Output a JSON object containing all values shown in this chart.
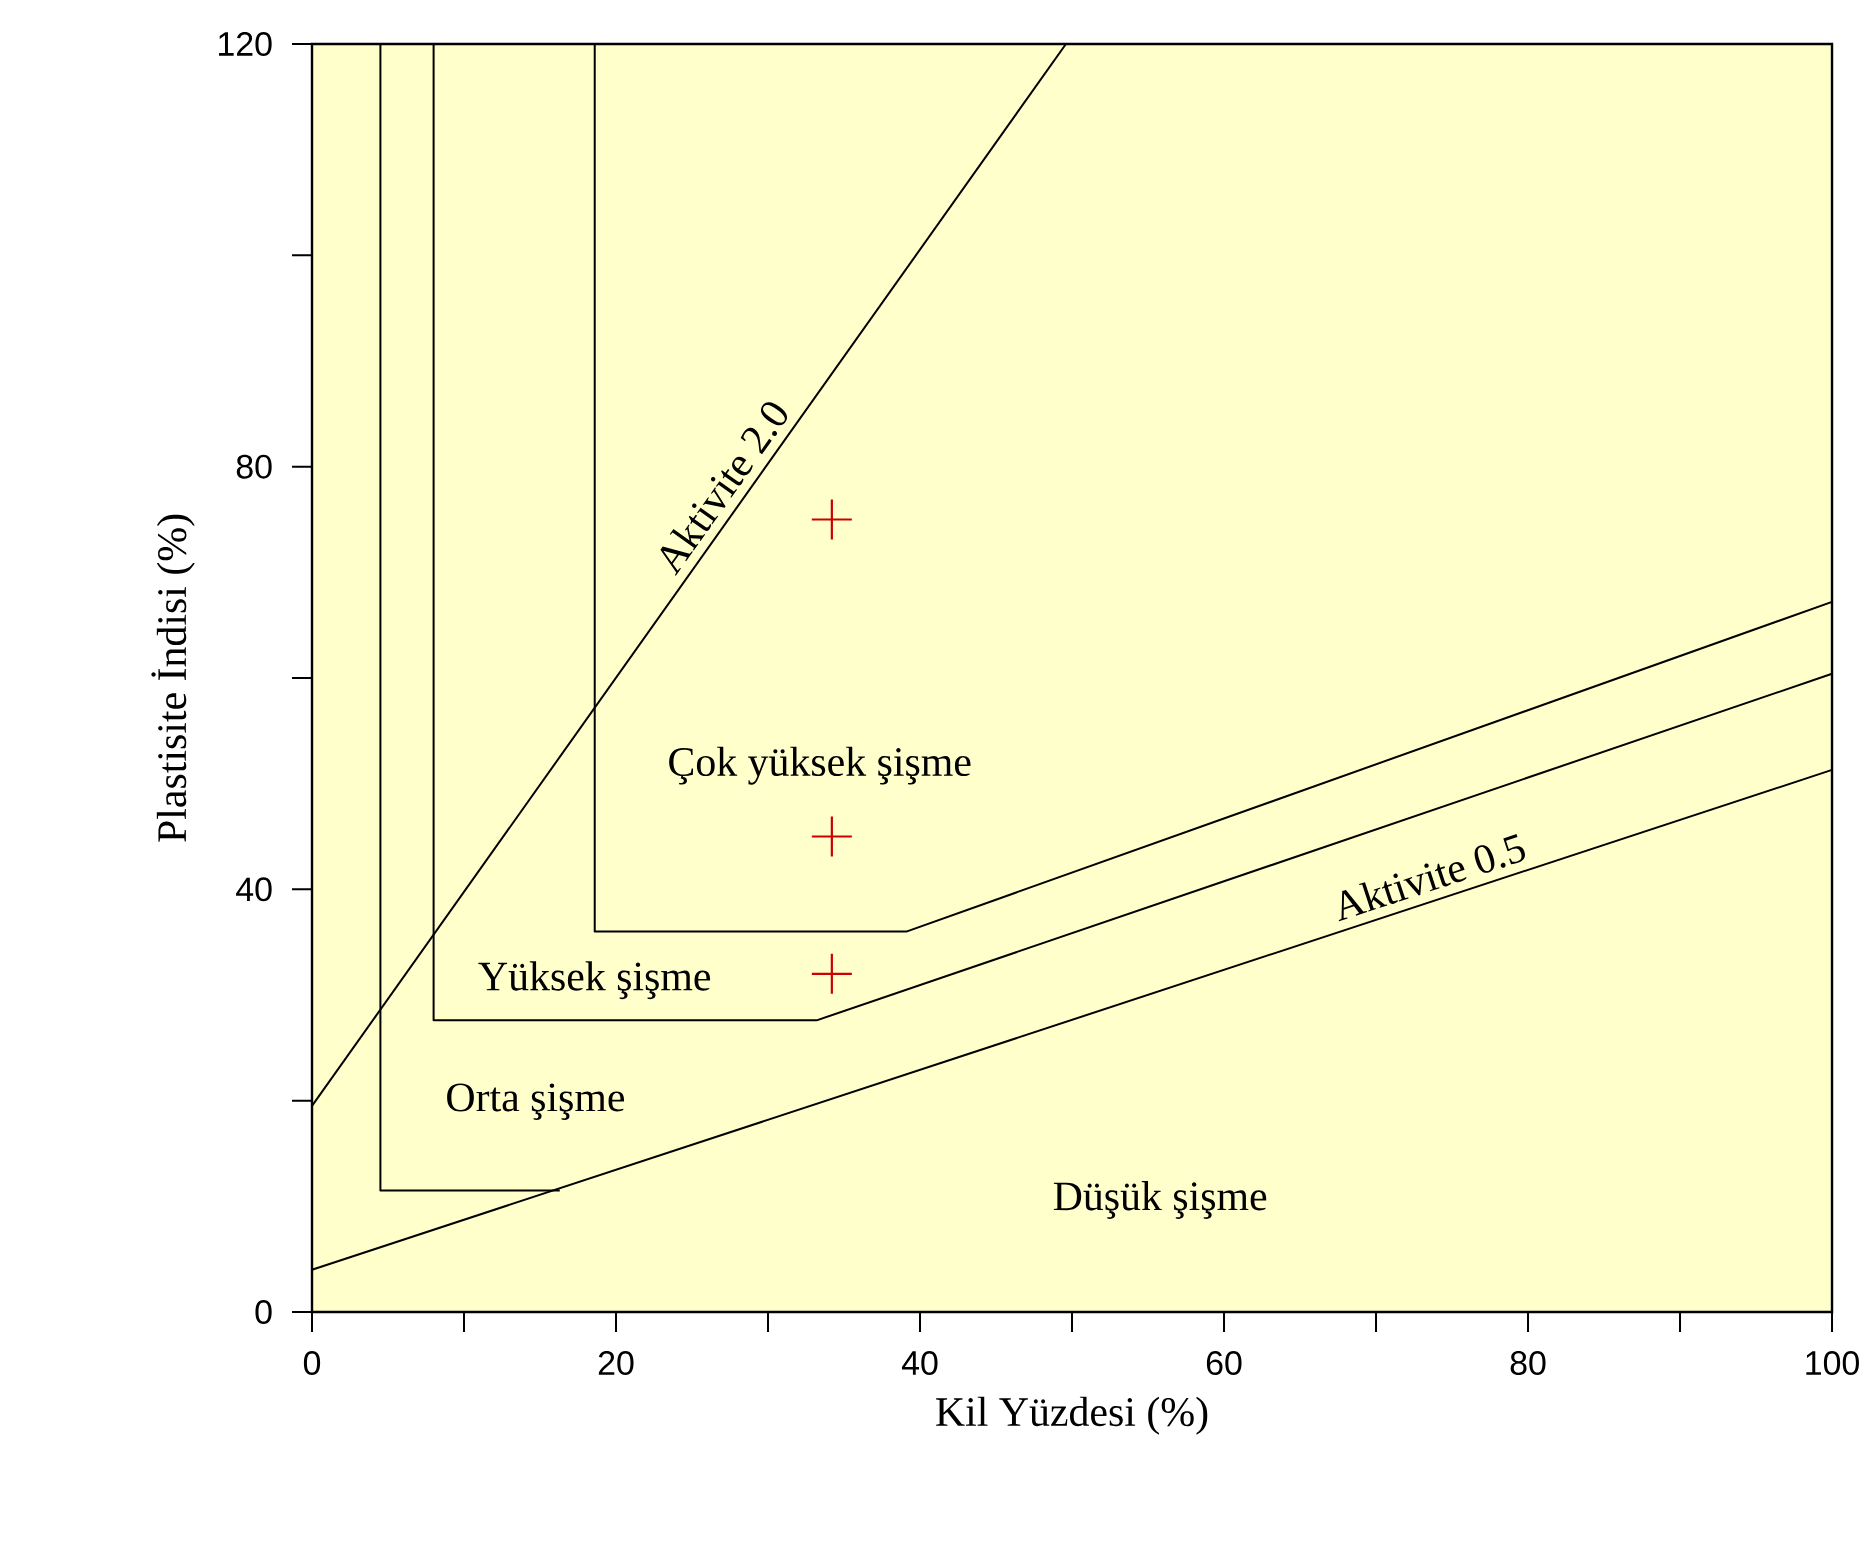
{
  "chart_data": {
    "type": "line",
    "xlabel": "Kil Yüzdesi (%)",
    "ylabel": "Plastisite İndisi (%)",
    "xlim": [
      0,
      100
    ],
    "ylim": [
      0,
      120
    ],
    "xticks": [
      0,
      {
        "value": 10,
        "label": null
      },
      20,
      {
        "value": 30,
        "label": null
      },
      40,
      {
        "value": 50,
        "label": null
      },
      60,
      {
        "value": 70,
        "label": null
      },
      80,
      {
        "value": 90,
        "label": null
      },
      100
    ],
    "yticks": [
      0,
      {
        "value": 20,
        "label": null
      },
      40,
      {
        "value": 60,
        "label": null
      },
      80,
      {
        "value": 100,
        "label": null
      },
      120
    ],
    "grid": false,
    "series": [
      {
        "name": "Aktivite 2.0",
        "color": "#000000",
        "x": [
          0,
          49.6
        ],
        "values": [
          19.5,
          120
        ]
      },
      {
        "name": "Aktivite 0.5",
        "color": "#000000",
        "x": [
          0,
          100
        ],
        "values": [
          4,
          51.3
        ]
      },
      {
        "color": "#000000",
        "x": [
          4.5,
          4.5,
          16.3
        ],
        "values": [
          120,
          11.5,
          11.5
        ]
      },
      {
        "color": "#000000",
        "x": [
          8,
          8,
          33.2,
          100
        ],
        "values": [
          120,
          27.6,
          27.6,
          60.4
        ]
      },
      {
        "color": "#000000",
        "x": [
          18.6,
          18.6,
          39.1,
          100
        ],
        "values": [
          120,
          36,
          36,
          67.2
        ]
      },
      {
        "type": "scatter",
        "marker": "cross",
        "color": "#cc0000",
        "x": [
          34.2,
          34.2,
          34.2
        ],
        "values": [
          75,
          45,
          32
        ]
      }
    ],
    "annotations": [
      "Çok yüksek şişme",
      "Yüksek şişme",
      "Orta şişme",
      "Düşük şişme"
    ]
  }
}
